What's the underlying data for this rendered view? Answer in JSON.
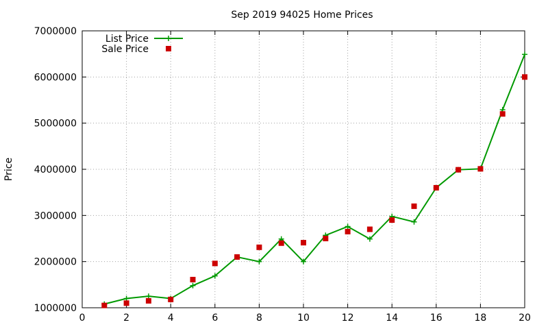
{
  "chart_data": {
    "type": "line",
    "title": "Sep 2019 94025 Home Prices",
    "xlabel": "",
    "ylabel": "Price",
    "xlim": [
      0,
      20
    ],
    "ylim": [
      1000000,
      7000000
    ],
    "x_ticks": [
      "0",
      "2",
      "4",
      "6",
      "8",
      "10",
      "12",
      "14",
      "16",
      "18",
      "20"
    ],
    "y_ticks": [
      "1000000",
      "2000000",
      "3000000",
      "4000000",
      "5000000",
      "6000000",
      "7000000"
    ],
    "grid": true,
    "legend_position": "top-left",
    "x": [
      1,
      2,
      3,
      4,
      5,
      6,
      7,
      8,
      9,
      10,
      11,
      12,
      13,
      14,
      15,
      16,
      17,
      18,
      19,
      20
    ],
    "series": [
      {
        "name": "List Price",
        "style": "line-plus",
        "color": "#009900",
        "values": [
          1080000,
          1200000,
          1250000,
          1200000,
          1480000,
          1690000,
          2100000,
          2000000,
          2490000,
          2000000,
          2570000,
          2760000,
          2490000,
          2980000,
          2860000,
          3600000,
          3990000,
          4010000,
          5290000,
          6490000
        ]
      },
      {
        "name": "Sale Price",
        "style": "square",
        "color": "#cc0000",
        "values": [
          1050000,
          1100000,
          1150000,
          1180000,
          1610000,
          1960000,
          2100000,
          2310000,
          2400000,
          2410000,
          2500000,
          2650000,
          2700000,
          2900000,
          3200000,
          3600000,
          3990000,
          4010000,
          5200000,
          6000000
        ]
      }
    ]
  }
}
